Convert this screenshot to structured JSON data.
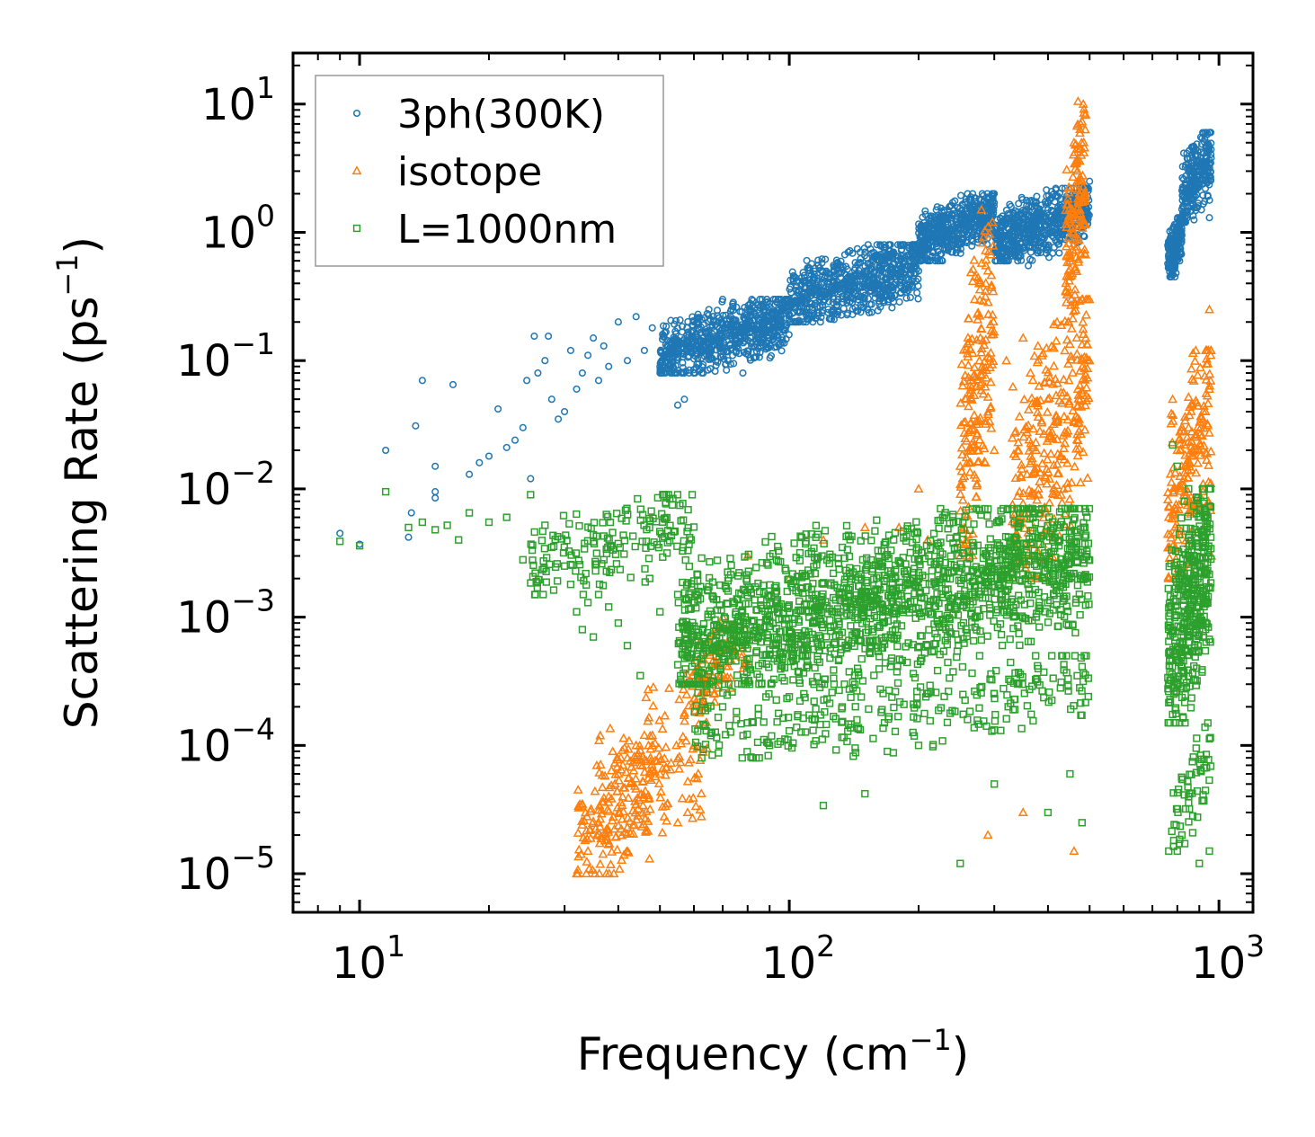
{
  "chart_data": {
    "type": "scatter",
    "xscale": "log",
    "yscale": "log",
    "xlabel": {
      "main": "Frequency (cm",
      "sup": "−1",
      "end": ")"
    },
    "ylabel": {
      "main": "Scattering Rate (ps",
      "sup": "−1",
      "end": ")"
    },
    "xlim": [
      7,
      1200
    ],
    "ylim": [
      5e-06,
      25
    ],
    "x_ticks": [
      {
        "value": 10,
        "base": "10",
        "exp": "1"
      },
      {
        "value": 100,
        "base": "10",
        "exp": "2"
      },
      {
        "value": 1000,
        "base": "10",
        "exp": "3"
      }
    ],
    "y_ticks": [
      {
        "value": 10,
        "base": "10",
        "exp": "1"
      },
      {
        "value": 1,
        "base": "10",
        "exp": "0"
      },
      {
        "value": 0.1,
        "base": "10",
        "exp": "−1"
      },
      {
        "value": 0.01,
        "base": "10",
        "exp": "−2"
      },
      {
        "value": 0.001,
        "base": "10",
        "exp": "−3"
      },
      {
        "value": 0.0001,
        "base": "10",
        "exp": "−4"
      },
      {
        "value": 1e-05,
        "base": "10",
        "exp": "−5"
      }
    ],
    "legend_position": "top-left",
    "series": [
      {
        "name": "3ph(300K)",
        "marker": "circle",
        "color": "#1f77b4",
        "points": [
          [
            9.0,
            0.0045
          ],
          [
            10.0,
            0.0037
          ],
          [
            11.5,
            0.02
          ],
          [
            13.0,
            0.0042
          ],
          [
            13.2,
            0.0065
          ],
          [
            13.5,
            0.031
          ],
          [
            14.0,
            0.07
          ],
          [
            15.0,
            0.015
          ],
          [
            15.0,
            0.0085
          ],
          [
            15.0,
            0.0095
          ],
          [
            16.5,
            0.065
          ],
          [
            18.0,
            0.013
          ],
          [
            19.0,
            0.016
          ],
          [
            20.0,
            0.018
          ],
          [
            21.0,
            0.042
          ],
          [
            22.0,
            0.021
          ],
          [
            23.0,
            0.024
          ],
          [
            24.0,
            0.03
          ],
          [
            24.5,
            0.07
          ],
          [
            25.0,
            0.012
          ],
          [
            25.5,
            0.155
          ],
          [
            26.0,
            0.08
          ],
          [
            27.0,
            0.1
          ],
          [
            27.5,
            0.155
          ],
          [
            28.0,
            0.05
          ],
          [
            29.0,
            0.035
          ],
          [
            30.0,
            0.04
          ],
          [
            31.0,
            0.12
          ],
          [
            32.0,
            0.06
          ],
          [
            33.0,
            0.08
          ],
          [
            34.0,
            0.11
          ],
          [
            35.0,
            0.15
          ],
          [
            36.0,
            0.07
          ],
          [
            37.0,
            0.13
          ],
          [
            38.0,
            0.09
          ],
          [
            40.0,
            0.2
          ],
          [
            42.0,
            0.1
          ],
          [
            44.0,
            0.22
          ],
          [
            46.0,
            0.12
          ],
          [
            48.0,
            0.18
          ],
          [
            50.0,
            0.09
          ],
          [
            52.0,
            0.13
          ],
          [
            55.0,
            0.045
          ],
          [
            57.0,
            0.05
          ],
          [
            60.0,
            0.2
          ],
          [
            62.0,
            0.12
          ],
          [
            65.0,
            0.25
          ],
          [
            68.0,
            0.15
          ],
          [
            70.0,
            0.3
          ],
          [
            72.0,
            0.1
          ],
          [
            75.0,
            0.2
          ],
          [
            78.0,
            0.08
          ],
          [
            80.0,
            0.25
          ],
          [
            85.0,
            0.15
          ],
          [
            90.0,
            0.28
          ],
          [
            95.0,
            0.18
          ],
          [
            100.0,
            0.3
          ],
          [
            110.0,
            0.25
          ],
          [
            120.0,
            0.35
          ],
          [
            130.0,
            0.3
          ],
          [
            140.0,
            0.45
          ],
          [
            150.0,
            0.7
          ],
          [
            160.0,
            0.4
          ],
          [
            170.0,
            0.6
          ],
          [
            180.0,
            0.55
          ],
          [
            190.0,
            0.75
          ],
          [
            200.0,
            0.5
          ],
          [
            210.0,
            0.6
          ],
          [
            220.0,
            0.9
          ],
          [
            230.0,
            1.0
          ],
          [
            240.0,
            0.7
          ],
          [
            250.0,
            1.3
          ],
          [
            260.0,
            2.0
          ],
          [
            270.0,
            1.5
          ],
          [
            280.0,
            1.8
          ],
          [
            290.0,
            1.2
          ],
          [
            300.0,
            1.7
          ],
          [
            320.0,
            0.9
          ],
          [
            340.0,
            1.3
          ],
          [
            360.0,
            0.55
          ],
          [
            380.0,
            1.0
          ],
          [
            400.0,
            1.5
          ],
          [
            420.0,
            1.0
          ],
          [
            440.0,
            1.8
          ],
          [
            460.0,
            0.8
          ],
          [
            480.0,
            2.2
          ],
          [
            500.0,
            2.5
          ],
          [
            770.0,
            0.9
          ],
          [
            790.0,
            0.45
          ],
          [
            810.0,
            0.6
          ],
          [
            830.0,
            1.2
          ],
          [
            850.0,
            3.0
          ],
          [
            870.0,
            4.5
          ],
          [
            890.0,
            2.2
          ],
          [
            910.0,
            1.5
          ],
          [
            930.0,
            6.0
          ],
          [
            950.0,
            1.3
          ]
        ],
        "bands": [
          {
            "x": [
              50,
              100
            ],
            "y": [
              0.08,
              0.3
            ],
            "n": 700
          },
          {
            "x": [
              100,
              200
            ],
            "y": [
              0.2,
              0.8
            ],
            "n": 700
          },
          {
            "x": [
              200,
              300
            ],
            "y": [
              0.6,
              2.0
            ],
            "n": 500
          },
          {
            "x": [
              300,
              500
            ],
            "y": [
              0.6,
              2.2
            ],
            "n": 600
          },
          {
            "x": [
              760,
              820
            ],
            "y": [
              0.45,
              1.3
            ],
            "n": 180
          },
          {
            "x": [
              820,
              960
            ],
            "y": [
              1.2,
              6.0
            ],
            "n": 250
          }
        ]
      },
      {
        "name": "isotope",
        "marker": "triangle",
        "color": "#ff7f0e",
        "points": [
          [
            32.0,
            1e-05
          ],
          [
            34.0,
            1.5e-05
          ],
          [
            36.0,
            2.5e-05
          ],
          [
            38.0,
            4e-05
          ],
          [
            40.0,
            6e-05
          ],
          [
            42.0,
            8e-05
          ],
          [
            44.0,
            0.0001
          ],
          [
            46.0,
            0.00012
          ],
          [
            48.0,
            0.0001
          ],
          [
            50.0,
            6e-05
          ],
          [
            52.0,
            3.5e-05
          ],
          [
            55.0,
            2.5e-05
          ],
          [
            58.0,
            3e-05
          ],
          [
            60.0,
            0.0001
          ],
          [
            62.0,
            0.0002
          ],
          [
            65.0,
            0.0004
          ],
          [
            68.0,
            0.0008
          ],
          [
            70.0,
            0.001
          ],
          [
            80.0,
            0.003
          ],
          [
            100.0,
            0.002
          ],
          [
            120.0,
            0.004
          ],
          [
            150.0,
            0.005
          ],
          [
            180.0,
            0.005
          ],
          [
            200.0,
            0.01
          ],
          [
            210.0,
            0.004
          ],
          [
            250.0,
            0.015
          ],
          [
            270.0,
            0.3
          ],
          [
            280.0,
            1.5
          ],
          [
            290.0,
            0.5
          ],
          [
            300.0,
            0.02
          ],
          [
            320.0,
            0.1
          ],
          [
            340.0,
            0.02
          ],
          [
            350.0,
            0.15
          ],
          [
            380.0,
            0.01
          ],
          [
            400.0,
            0.05
          ],
          [
            420.0,
            0.2
          ],
          [
            440.0,
            0.35
          ],
          [
            460.0,
            5.0
          ],
          [
            470.0,
            10.5
          ],
          [
            480.0,
            0.3
          ],
          [
            490.0,
            0.15
          ],
          [
            500.0,
            0.1
          ],
          [
            290.0,
            2e-05
          ],
          [
            460.0,
            1.5e-05
          ],
          [
            350.0,
            3e-05
          ],
          [
            780.0,
            0.05
          ],
          [
            800.0,
            0.02
          ],
          [
            820.0,
            0.015
          ],
          [
            850.0,
            0.03
          ],
          [
            900.0,
            0.02
          ],
          [
            950.0,
            0.25
          ],
          [
            960.0,
            0.003
          ]
        ],
        "bands": [
          {
            "x": [
              32,
              48
            ],
            "y": [
              1e-05,
              0.0001
            ],
            "n": 120
          },
          {
            "x": [
              36,
              65
            ],
            "y": [
              1e-05,
              0.0004
            ],
            "n": 180
          },
          {
            "x": [
              60,
              80
            ],
            "y": [
              0.0002,
              0.001
            ],
            "n": 100
          },
          {
            "x": [
              250,
              300
            ],
            "y": [
              0.003,
              1.2
            ],
            "n": 200
          },
          {
            "x": [
              330,
              500
            ],
            "y": [
              0.002,
              0.3
            ],
            "n": 300
          },
          {
            "x": [
              440,
              490
            ],
            "y": [
              0.2,
              10.0
            ],
            "n": 150
          },
          {
            "x": [
              760,
              960
            ],
            "y": [
              0.002,
              0.12
            ],
            "n": 200
          }
        ]
      },
      {
        "name": "L=1000nm",
        "marker": "square",
        "color": "#2ca02c",
        "points": [
          [
            9.0,
            0.0039
          ],
          [
            10.0,
            0.0036
          ],
          [
            11.5,
            0.0095
          ],
          [
            13.0,
            0.005
          ],
          [
            14.0,
            0.0055
          ],
          [
            15.0,
            0.0048
          ],
          [
            16.0,
            0.0052
          ],
          [
            17.0,
            0.004
          ],
          [
            18.0,
            0.0065
          ],
          [
            20.0,
            0.0055
          ],
          [
            22.0,
            0.006
          ],
          [
            24.0,
            0.0028
          ],
          [
            25.0,
            0.009
          ],
          [
            27.0,
            0.0052
          ],
          [
            28.0,
            0.0035
          ],
          [
            30.0,
            0.0025
          ],
          [
            31.0,
            0.0018
          ],
          [
            32.0,
            0.0011
          ],
          [
            33.0,
            0.0008
          ],
          [
            34.0,
            0.0013
          ],
          [
            35.0,
            0.0007
          ],
          [
            36.0,
            0.0015
          ],
          [
            38.0,
            0.0012
          ],
          [
            40.0,
            0.0009
          ],
          [
            42.0,
            0.0006
          ],
          [
            45.0,
            0.00035
          ],
          [
            50.0,
            0.0011
          ],
          [
            55.0,
            0.0015
          ],
          [
            58.0,
            0.0005
          ],
          [
            60.0,
            0.0003
          ],
          [
            70.0,
            0.0002
          ],
          [
            80.0,
            0.00015
          ],
          [
            90.0,
            0.0001
          ],
          [
            100.0,
            0.00013
          ],
          [
            120.0,
            3.4e-05
          ],
          [
            150.0,
            4.2e-05
          ],
          [
            200.0,
            0.0001
          ],
          [
            250.0,
            1.2e-05
          ],
          [
            300.0,
            5e-05
          ],
          [
            400.0,
            3e-05
          ],
          [
            450.0,
            6e-05
          ],
          [
            480.0,
            2.5e-05
          ],
          [
            800.0,
            1.5e-05
          ],
          [
            820.0,
            2e-05
          ],
          [
            850.0,
            4e-05
          ],
          [
            900.0,
            1.2e-05
          ],
          [
            950.0,
            1.5e-05
          ],
          [
            780.0,
            0.022
          ],
          [
            800.0,
            0.015
          ],
          [
            830.0,
            0.008
          ],
          [
            850.0,
            0.01
          ]
        ],
        "bands": [
          {
            "x": [
              25,
              60
            ],
            "y": [
              0.0015,
              0.009
            ],
            "n": 180
          },
          {
            "x": [
              55,
              500
            ],
            "y": [
              0.0003,
              0.007
            ],
            "n": 1700
          },
          {
            "x": [
              60,
              500
            ],
            "y": [
              8e-05,
              0.0005
            ],
            "n": 300
          },
          {
            "x": [
              760,
              960
            ],
            "y": [
              0.00015,
              0.01
            ],
            "n": 400
          },
          {
            "x": [
              760,
              960
            ],
            "y": [
              1.5e-05,
              0.00015
            ],
            "n": 60
          }
        ]
      }
    ]
  }
}
